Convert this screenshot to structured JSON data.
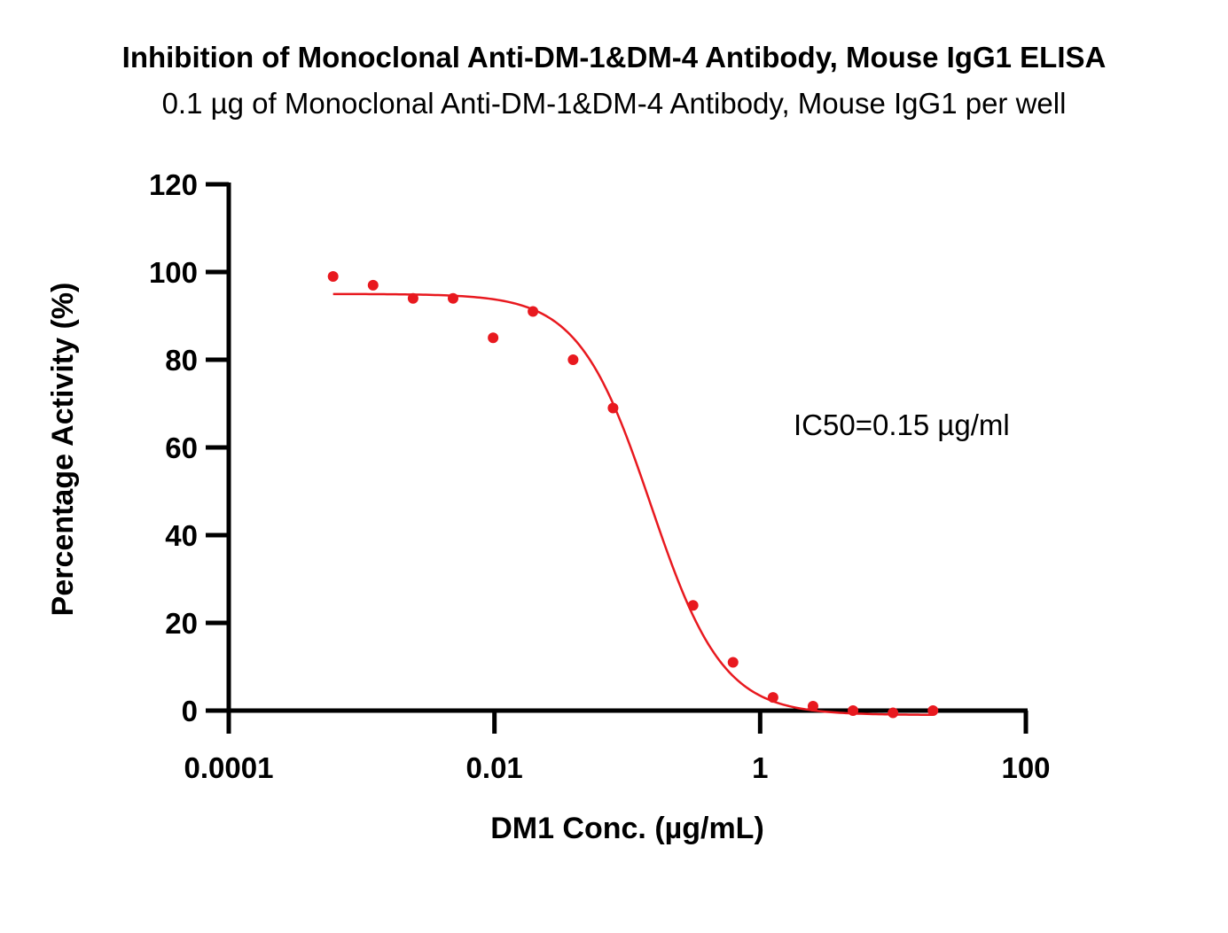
{
  "chart_data": {
    "type": "scatter",
    "title": "Inhibition of Monoclonal Anti-DM-1&DM-4 Antibody, Mouse IgG1 ELISA",
    "subtitle": "0.1 µg of Monoclonal Anti-DM-1&DM-4 Antibody, Mouse IgG1 per well",
    "xlabel": "DM1 Conc. (µg/mL)",
    "ylabel": "Percentage Activity (%)",
    "x_scale": "log",
    "xlim": [
      0.0001,
      100
    ],
    "ylim": [
      0,
      120
    ],
    "x_ticks": [
      {
        "value": 0.0001,
        "label": "0.0001"
      },
      {
        "value": 0.01,
        "label": "0.01"
      },
      {
        "value": 1,
        "label": "1"
      },
      {
        "value": 100,
        "label": "100"
      }
    ],
    "y_ticks": [
      {
        "value": 0,
        "label": "0"
      },
      {
        "value": 20,
        "label": "20"
      },
      {
        "value": 40,
        "label": "40"
      },
      {
        "value": 60,
        "label": "60"
      },
      {
        "value": 80,
        "label": "80"
      },
      {
        "value": 100,
        "label": "100"
      },
      {
        "value": 120,
        "label": "120"
      }
    ],
    "grid": false,
    "series": [
      {
        "color": "#e8191f",
        "x": [
          0.00061,
          0.00122,
          0.00244,
          0.00488,
          0.00977,
          0.0195,
          0.0391,
          0.0781,
          0.3125,
          0.625,
          1.25,
          2.5,
          5.0,
          10.0,
          20.0
        ],
        "y": [
          99,
          97,
          94,
          94,
          85,
          91,
          80,
          69,
          24,
          11,
          3,
          1,
          0,
          -0.5,
          0
        ]
      }
    ],
    "fit": {
      "color": "#e8191f",
      "model": "4PL",
      "top": 95,
      "bottom": -1,
      "ic50": 0.15,
      "hill": 1.6,
      "x_range": [
        0.00061,
        20.0
      ]
    },
    "annotations": [
      {
        "text": "IC50=0.15 µg/ml"
      }
    ]
  }
}
